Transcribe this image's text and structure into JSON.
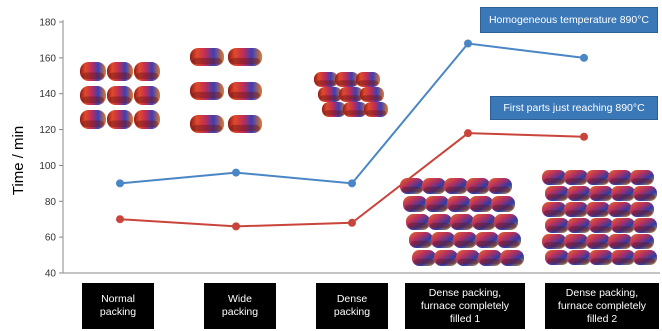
{
  "chart_data": {
    "type": "line",
    "categories": [
      "Normal\npacking",
      "Wide\npacking",
      "Dense\npacking",
      "Dense packing,\nfurnace completely\nfilled 1",
      "Dense packing,\nfurnace completely\nfilled 2"
    ],
    "series": [
      {
        "name": "Homogeneous temperature 890°C",
        "values": [
          90,
          96,
          90,
          168,
          160
        ],
        "color": "#4a86c5"
      },
      {
        "name": "First parts just reaching 890°C",
        "values": [
          70,
          66,
          68,
          118,
          116
        ],
        "color": "#c9453b"
      }
    ],
    "ylabel": "Time / min",
    "xlabel": "",
    "title": "",
    "ylim": [
      40,
      180
    ],
    "yticks": [
      40,
      60,
      80,
      100,
      120,
      140,
      160,
      180
    ],
    "grid": false,
    "legend": "callout boxes near line ends"
  },
  "colors": {
    "callout_bg": "#3a78b8",
    "category_box_bg": "#000000",
    "axis": "#888888"
  }
}
